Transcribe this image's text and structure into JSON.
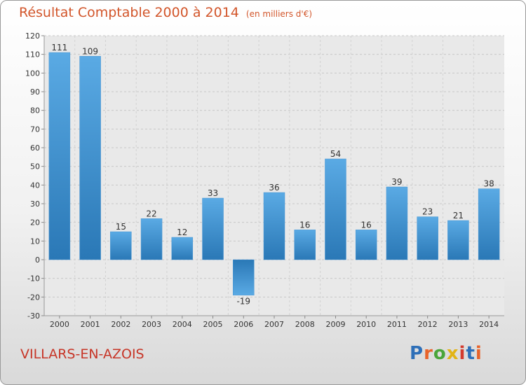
{
  "header": {
    "title": "Résultat Comptable 2000 à 2014",
    "unit": "(en milliers d'€)"
  },
  "footer": {
    "commune": "VILLARS-EN-AZOIS",
    "logo_text": "Proxiti"
  },
  "colors": {
    "title": "#d2552a",
    "commune": "#c73527",
    "bar_light": "#5aaae4",
    "bar_dark": "#2a78b6"
  },
  "chart_data": {
    "type": "bar",
    "title": "Résultat Comptable 2000 à 2014",
    "subtitle": "(en milliers d'€)",
    "xlabel": "",
    "ylabel": "",
    "categories": [
      "2000",
      "2001",
      "2002",
      "2003",
      "2004",
      "2005",
      "2006",
      "2007",
      "2008",
      "2009",
      "2010",
      "2011",
      "2012",
      "2013",
      "2014"
    ],
    "values": [
      111,
      109,
      15,
      22,
      12,
      33,
      -19,
      36,
      16,
      54,
      16,
      39,
      23,
      21,
      38
    ],
    "value_labels": [
      "111",
      "109",
      "15",
      "22",
      "12",
      "33",
      "-19",
      "36",
      "16",
      "54",
      "16",
      "39",
      "23",
      "21",
      "38"
    ],
    "ylim": [
      -30,
      120
    ],
    "yticks": [
      -30,
      -20,
      -10,
      0,
      10,
      20,
      30,
      40,
      50,
      60,
      70,
      80,
      90,
      100,
      110,
      120
    ],
    "grid": true
  }
}
